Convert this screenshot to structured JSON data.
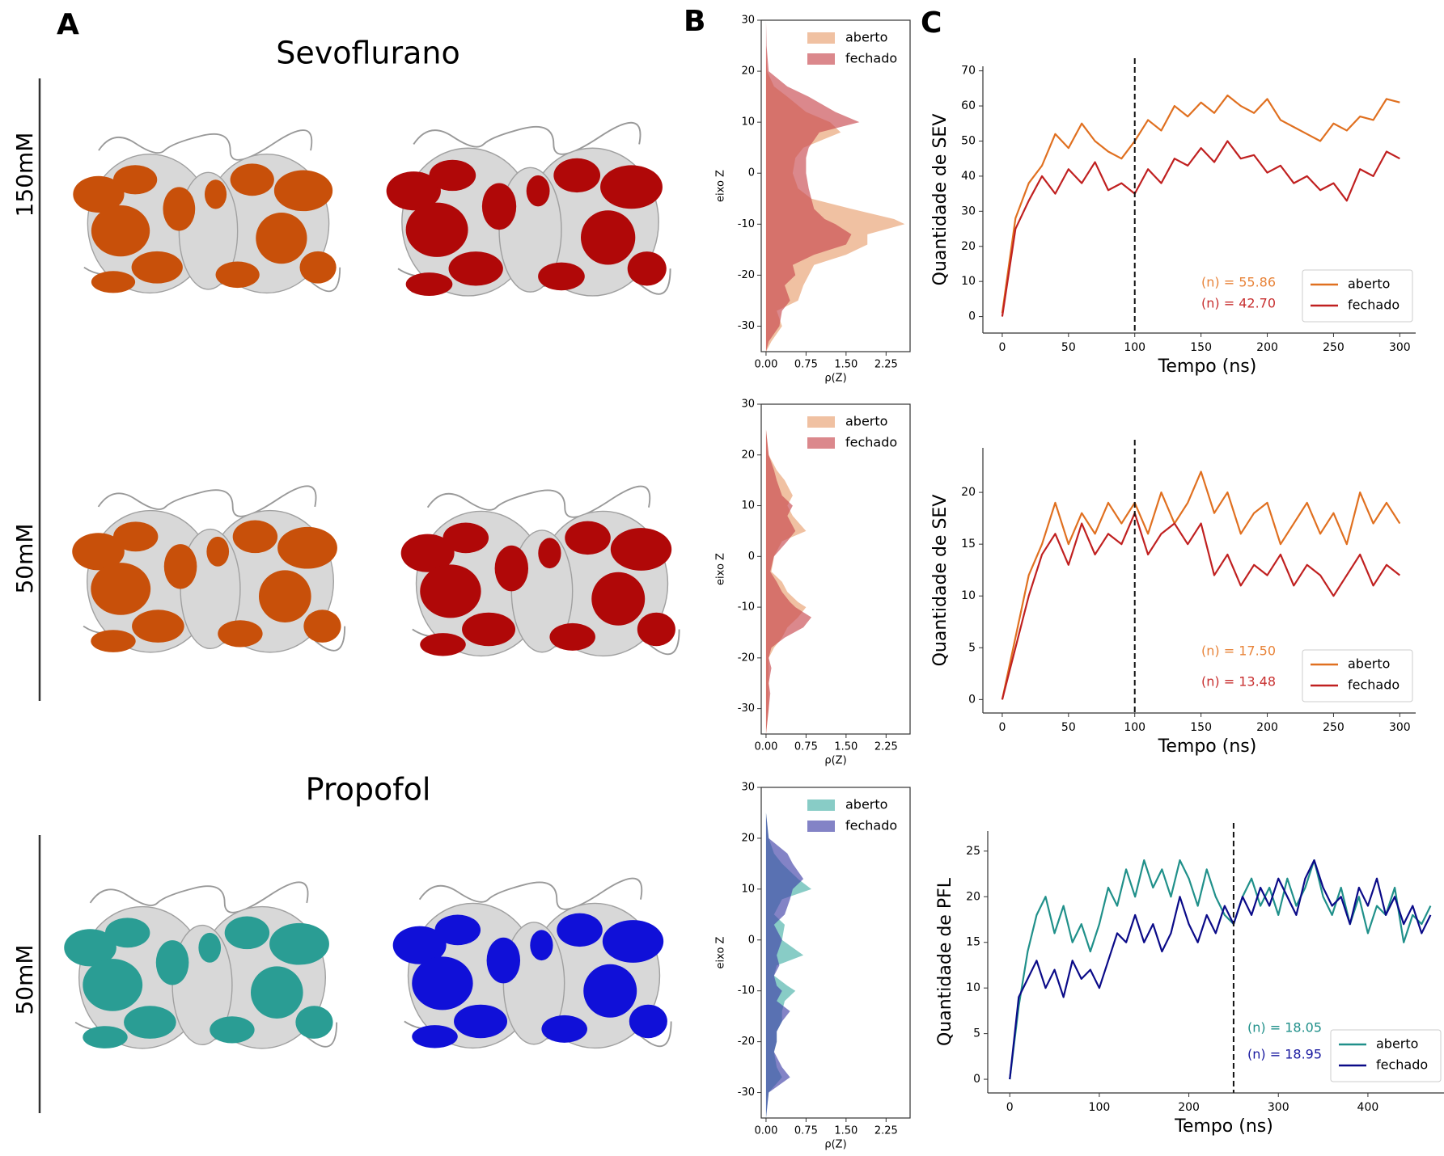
{
  "panel_labels": [
    "A",
    "B",
    "C"
  ],
  "panel_a": {
    "sevo_title": "Sevoflurano",
    "sevo_conc_high": "150mM",
    "sevo_conc_low": "50mM",
    "prop_title": "Propofol",
    "prop_conc": "50mM"
  },
  "chart_data": [
    {
      "type": "density",
      "xlabel": "eixo Z",
      "ylabel": "ρ(Z)",
      "x": [
        30,
        25,
        20,
        17,
        15,
        12,
        10,
        8,
        5,
        3,
        0,
        -3,
        -5,
        -7,
        -9,
        -10,
        -12,
        -14,
        -16,
        -18,
        -20,
        -22,
        -25,
        -27,
        -30,
        -33,
        -35
      ],
      "xlim": [
        30,
        -35
      ],
      "xticks": [
        30,
        20,
        10,
        0,
        -10,
        -20,
        -30
      ],
      "ylim": [
        -0.09,
        2.7
      ],
      "yticks": [
        {
          "value": 0,
          "label": "0.00"
        },
        {
          "value": 0.75,
          "label": "0.75"
        },
        {
          "value": 1.5,
          "label": "1.50"
        },
        {
          "value": 2.25,
          "label": "2.25"
        }
      ],
      "series": [
        {
          "name": "aberto",
          "color": "#e8a070",
          "values": [
            0,
            0,
            0.02,
            0.15,
            0.4,
            0.75,
            1.2,
            1.4,
            0.7,
            0.55,
            0.5,
            0.6,
            0.85,
            1.6,
            2.4,
            2.6,
            1.9,
            1.9,
            1.5,
            0.9,
            0.8,
            0.7,
            0.6,
            0.2,
            0.3,
            0.1,
            0
          ]
        },
        {
          "name": "fechado",
          "color": "#c8484e",
          "values": [
            0,
            0.01,
            0.05,
            0.4,
            0.8,
            1.3,
            1.75,
            1.0,
            0.8,
            0.75,
            0.75,
            0.8,
            0.85,
            0.9,
            1.1,
            1.3,
            1.6,
            1.5,
            0.9,
            0.5,
            0.55,
            0.35,
            0.45,
            0.3,
            0.25,
            0.05,
            0
          ]
        }
      ]
    },
    {
      "type": "density",
      "xlabel": "eixo Z",
      "ylabel": "ρ(Z)",
      "x": [
        30,
        25,
        20,
        17,
        15,
        12,
        10,
        8,
        5,
        3,
        0,
        -3,
        -5,
        -7,
        -9,
        -10,
        -12,
        -14,
        -16,
        -18,
        -20,
        -22,
        -25,
        -27,
        -30,
        -33,
        -35
      ],
      "xlim": [
        30,
        -35
      ],
      "xticks": [
        30,
        20,
        10,
        0,
        -10,
        -20,
        -30
      ],
      "ylim": [
        -0.09,
        2.7
      ],
      "yticks": [
        {
          "value": 0,
          "label": "0.00"
        },
        {
          "value": 0.75,
          "label": "0.75"
        },
        {
          "value": 1.5,
          "label": "1.50"
        },
        {
          "value": 2.25,
          "label": "2.25"
        }
      ],
      "series": [
        {
          "name": "aberto",
          "color": "#e8a070",
          "values": [
            0,
            0,
            0.05,
            0.2,
            0.35,
            0.5,
            0.4,
            0.5,
            0.75,
            0.3,
            0.15,
            0.1,
            0.3,
            0.4,
            0.6,
            0.75,
            0.6,
            0.4,
            0.3,
            0.15,
            0.05,
            0.05,
            0.05,
            0.05,
            0.05,
            0.02,
            0
          ]
        },
        {
          "name": "fechado",
          "color": "#c8484e",
          "values": [
            0,
            0,
            0.05,
            0.15,
            0.2,
            0.3,
            0.5,
            0.4,
            0.55,
            0.4,
            0.15,
            0.08,
            0.2,
            0.3,
            0.45,
            0.55,
            0.85,
            0.7,
            0.35,
            0.1,
            0.05,
            0.1,
            0.05,
            0.08,
            0.05,
            0.02,
            0
          ]
        }
      ]
    },
    {
      "type": "density",
      "xlabel": "eixo Z",
      "ylabel": "ρ(Z)",
      "x": [
        30,
        25,
        20,
        17,
        15,
        12,
        10,
        8,
        5,
        3,
        0,
        -3,
        -5,
        -7,
        -9,
        -10,
        -12,
        -14,
        -16,
        -18,
        -20,
        -22,
        -25,
        -27,
        -30,
        -33,
        -35
      ],
      "xlim": [
        30,
        -35
      ],
      "xticks": [
        30,
        20,
        10,
        0,
        -10,
        -20,
        -30
      ],
      "ylim": [
        -0.09,
        2.7
      ],
      "yticks": [
        {
          "value": 0,
          "label": "0.00"
        },
        {
          "value": 0.75,
          "label": "0.75"
        },
        {
          "value": 1.5,
          "label": "1.50"
        },
        {
          "value": 2.25,
          "label": "2.25"
        }
      ],
      "series": [
        {
          "name": "aberto",
          "color": "#48b0a8",
          "values": [
            0,
            0,
            0.05,
            0.15,
            0.3,
            0.6,
            0.85,
            0.3,
            0.15,
            0.35,
            0.3,
            0.7,
            0.2,
            0.15,
            0.4,
            0.55,
            0.35,
            0.3,
            0.3,
            0.2,
            0.2,
            0.15,
            0.2,
            0.3,
            0.05,
            0.02,
            0
          ]
        },
        {
          "name": "fechado",
          "color": "#4040a8",
          "values": [
            0,
            0,
            0.05,
            0.4,
            0.5,
            0.7,
            0.5,
            0.45,
            0.35,
            0.15,
            0.3,
            0.2,
            0.25,
            0.15,
            0.2,
            0.3,
            0.2,
            0.45,
            0.3,
            0.2,
            0.2,
            0.15,
            0.3,
            0.45,
            0.05,
            0.02,
            0
          ]
        }
      ]
    },
    {
      "type": "line",
      "xlabel": "Tempo (ns)",
      "ylabel": "Quantidade de SEV",
      "x": [
        0,
        10,
        20,
        30,
        40,
        50,
        60,
        70,
        80,
        90,
        100,
        110,
        120,
        130,
        140,
        150,
        160,
        170,
        180,
        190,
        200,
        210,
        220,
        230,
        240,
        250,
        260,
        270,
        280,
        290,
        300
      ],
      "xlim": [
        -14.6,
        312
      ],
      "xticks": [
        0,
        50,
        100,
        150,
        200,
        250,
        300
      ],
      "ylim": [
        -4.7,
        71.3
      ],
      "yticks": [
        0,
        10,
        20,
        30,
        40,
        50,
        60,
        70
      ],
      "vline": 100,
      "series": [
        {
          "name": "aberto",
          "color": "#e07020",
          "values": [
            1,
            28,
            38,
            43,
            52,
            48,
            55,
            50,
            47,
            45,
            50,
            56,
            53,
            60,
            57,
            61,
            58,
            63,
            60,
            58,
            62,
            56,
            54,
            52,
            50,
            55,
            53,
            57,
            56,
            62,
            61
          ]
        },
        {
          "name": "fechado",
          "color": "#c02020",
          "values": [
            0,
            25,
            33,
            40,
            35,
            42,
            38,
            44,
            36,
            38,
            35,
            42,
            38,
            45,
            43,
            48,
            44,
            50,
            45,
            46,
            41,
            43,
            38,
            40,
            36,
            38,
            33,
            42,
            40,
            47,
            45
          ]
        }
      ],
      "annotations": [
        {
          "text": "(n) = 55.86",
          "color": "#e8843a"
        },
        {
          "text": "(n) = 42.70",
          "color": "#c83030"
        }
      ]
    },
    {
      "type": "line",
      "xlabel": "Tempo (ns)",
      "ylabel": "Quantidade de SEV",
      "x": [
        0,
        10,
        20,
        30,
        40,
        50,
        60,
        70,
        80,
        90,
        100,
        110,
        120,
        130,
        140,
        150,
        160,
        170,
        180,
        190,
        200,
        210,
        220,
        230,
        240,
        250,
        260,
        270,
        280,
        290,
        300
      ],
      "xlim": [
        -14.6,
        312
      ],
      "xticks": [
        0,
        50,
        100,
        150,
        200,
        250,
        300
      ],
      "ylim": [
        -1.3,
        24.3
      ],
      "yticks": [
        0,
        5,
        10,
        15,
        20
      ],
      "vline": 100,
      "series": [
        {
          "name": "aberto",
          "color": "#e07020",
          "values": [
            0,
            6,
            12,
            15,
            19,
            15,
            18,
            16,
            19,
            17,
            19,
            16,
            20,
            17,
            19,
            22,
            18,
            20,
            16,
            18,
            19,
            15,
            17,
            19,
            16,
            18,
            15,
            20,
            17,
            19,
            17
          ]
        },
        {
          "name": "fechado",
          "color": "#c02020",
          "values": [
            0,
            5,
            10,
            14,
            16,
            13,
            17,
            14,
            16,
            15,
            18,
            14,
            16,
            17,
            15,
            17,
            12,
            14,
            11,
            13,
            12,
            14,
            11,
            13,
            12,
            10,
            12,
            14,
            11,
            13,
            12
          ]
        }
      ],
      "annotations": [
        {
          "text": "(n) = 17.50",
          "color": "#e8843a"
        },
        {
          "text": "(n) = 13.48",
          "color": "#c83030"
        }
      ]
    },
    {
      "type": "line",
      "xlabel": "Tempo (ns)",
      "ylabel": "Quantidade de PFL",
      "x": [
        0,
        10,
        20,
        30,
        40,
        50,
        60,
        70,
        80,
        90,
        100,
        110,
        120,
        130,
        140,
        150,
        160,
        170,
        180,
        190,
        200,
        210,
        220,
        230,
        240,
        250,
        260,
        270,
        280,
        290,
        300,
        310,
        320,
        330,
        340,
        350,
        360,
        370,
        380,
        390,
        400,
        410,
        420,
        430,
        440,
        450,
        460,
        470
      ],
      "xlim": [
        -24.6,
        485
      ],
      "xticks": [
        0,
        100,
        200,
        300,
        400
      ],
      "ylim": [
        -1.5,
        27.2
      ],
      "yticks": [
        0,
        5,
        10,
        15,
        20,
        25
      ],
      "vline": 250,
      "series": [
        {
          "name": "aberto",
          "color": "#20908a",
          "values": [
            0,
            8,
            14,
            18,
            20,
            16,
            19,
            15,
            17,
            14,
            17,
            21,
            19,
            23,
            20,
            24,
            21,
            23,
            20,
            24,
            22,
            19,
            23,
            20,
            18,
            17,
            20,
            22,
            19,
            21,
            18,
            22,
            19,
            21,
            24,
            20,
            18,
            21,
            17,
            20,
            16,
            19,
            18,
            21,
            15,
            18,
            17,
            19
          ]
        },
        {
          "name": "fechado",
          "color": "#0a0a88",
          "values": [
            0,
            9,
            11,
            13,
            10,
            12,
            9,
            13,
            11,
            12,
            10,
            13,
            16,
            15,
            18,
            15,
            17,
            14,
            16,
            20,
            17,
            15,
            18,
            16,
            19,
            17,
            20,
            18,
            21,
            19,
            22,
            20,
            18,
            22,
            24,
            21,
            19,
            20,
            17,
            21,
            19,
            22,
            18,
            20,
            17,
            19,
            16,
            18
          ]
        }
      ],
      "annotations": [
        {
          "text": "(n) = 18.05",
          "color": "#20908a"
        },
        {
          "text": "(n) = 18.95",
          "color": "#1a1aa0"
        }
      ]
    }
  ]
}
